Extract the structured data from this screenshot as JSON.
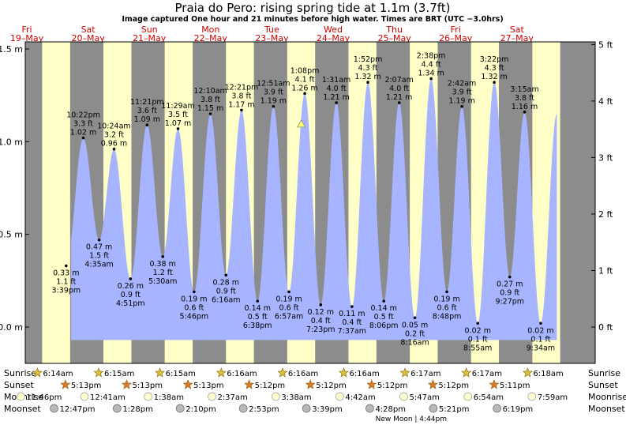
{
  "title": "Praia do Pero: rising  spring tide at 1.1m (3.7ft)",
  "subtitle": "Image captured One hour and 21 minutes before high water. Times are BRT (UTC −3.0hrs)",
  "colors": {
    "night": "#8c8c8c",
    "day": "#ffffc8",
    "tide": "#a7b4ff",
    "day_label": "#cc0000",
    "text": "#000000"
  },
  "days": [
    {
      "dow": "Fri",
      "date": "19–May"
    },
    {
      "dow": "Sat",
      "date": "20–May"
    },
    {
      "dow": "Sun",
      "date": "21–May"
    },
    {
      "dow": "Mon",
      "date": "22–May"
    },
    {
      "dow": "Tue",
      "date": "23–May"
    },
    {
      "dow": "Wed",
      "date": "24–May"
    },
    {
      "dow": "Thu",
      "date": "25–May"
    },
    {
      "dow": "Fri",
      "date": "26–May"
    },
    {
      "dow": "Sat",
      "date": "27–May"
    }
  ],
  "y_ticks_m": [
    "1.5 m",
    "1.0 m",
    "0.5 m",
    "0.0 m"
  ],
  "y_ticks_ft": [
    "5 ft",
    "4 ft",
    "3 ft",
    "2 ft",
    "1 ft",
    "0 ft"
  ],
  "chart_data": {
    "type": "area",
    "title": "Praia do Pero: rising  spring tide at 1.1m (3.7ft)",
    "ylim": [
      -0.08,
      1.52
    ],
    "extremes": [
      {
        "m": 0.33,
        "ft": "1.1 ft",
        "height": "0.33 m",
        "time": "3:39 pm",
        "day": 0,
        "hour": 15.65,
        "type": "low"
      },
      {
        "m": 1.02,
        "ft": "3.3 ft",
        "height": "1.02 m",
        "time": "10:22 pm",
        "day": 0,
        "hour": 22.37,
        "type": "high"
      },
      {
        "m": 0.47,
        "ft": "1.5 ft",
        "height": "0.47 m",
        "time": "4:35 am",
        "day": 1,
        "hour": 4.58,
        "type": "low"
      },
      {
        "m": 0.96,
        "ft": "3.2 ft",
        "height": "0.96 m",
        "time": "10:24 am",
        "day": 1,
        "hour": 10.4,
        "type": "high"
      },
      {
        "m": 0.26,
        "ft": "0.9 ft",
        "height": "0.26 m",
        "time": "4:51 pm",
        "day": 1,
        "hour": 16.85,
        "type": "low"
      },
      {
        "m": 1.09,
        "ft": "3.6 ft",
        "height": "1.09 m",
        "time": "11:21 pm",
        "day": 1,
        "hour": 23.35,
        "type": "high"
      },
      {
        "m": 0.38,
        "ft": "1.2 ft",
        "height": "0.38 m",
        "time": "5:30 am",
        "day": 2,
        "hour": 5.5,
        "type": "low"
      },
      {
        "m": 1.07,
        "ft": "3.5 ft",
        "height": "1.07 m",
        "time": "11:29 am",
        "day": 2,
        "hour": 11.48,
        "type": "high"
      },
      {
        "m": 0.19,
        "ft": "0.6 ft",
        "height": "0.19 m",
        "time": "5:46 pm",
        "day": 2,
        "hour": 17.77,
        "type": "low"
      },
      {
        "m": 1.15,
        "ft": "3.8 ft",
        "height": "1.15 m",
        "time": "12:10 am",
        "day": 3,
        "hour": 0.17,
        "type": "high"
      },
      {
        "m": 0.28,
        "ft": "0.9 ft",
        "height": "0.28 m",
        "time": "6:16 am",
        "day": 3,
        "hour": 6.27,
        "type": "low"
      },
      {
        "m": 1.17,
        "ft": "3.8 ft",
        "height": "1.17 m",
        "time": "12:21 pm",
        "day": 3,
        "hour": 12.35,
        "type": "high"
      },
      {
        "m": 0.14,
        "ft": "0.5 ft",
        "height": "0.14 m",
        "time": "6:38 pm",
        "day": 3,
        "hour": 18.63,
        "type": "low"
      },
      {
        "m": 1.19,
        "ft": "3.9 ft",
        "height": "1.19 m",
        "time": "12:51 am",
        "day": 4,
        "hour": 0.85,
        "type": "high"
      },
      {
        "m": 0.19,
        "ft": "0.6 ft",
        "height": "0.19 m",
        "time": "6:57 am",
        "day": 4,
        "hour": 6.95,
        "type": "low"
      },
      {
        "m": 1.26,
        "ft": "4.1 ft",
        "height": "1.26 m",
        "time": "1:08 pm",
        "day": 4,
        "hour": 13.13,
        "type": "high"
      },
      {
        "m": 0.12,
        "ft": "0.4 ft",
        "height": "0.12 m",
        "time": "7:23 pm",
        "day": 4,
        "hour": 19.38,
        "type": "low"
      },
      {
        "m": 1.21,
        "ft": "4.0 ft",
        "height": "1.21 m",
        "time": "1:31 am",
        "day": 5,
        "hour": 1.52,
        "type": "high"
      },
      {
        "m": 0.11,
        "ft": "0.4 ft",
        "height": "0.11 m",
        "time": "7:37 am",
        "day": 5,
        "hour": 7.62,
        "type": "low"
      },
      {
        "m": 1.32,
        "ft": "4.3 ft",
        "height": "1.32 m",
        "time": "1:52 pm",
        "day": 5,
        "hour": 13.87,
        "type": "high"
      },
      {
        "m": 0.14,
        "ft": "0.5 ft",
        "height": "0.14 m",
        "time": "8:06 pm",
        "day": 5,
        "hour": 20.1,
        "type": "low"
      },
      {
        "m": 1.21,
        "ft": "4.0 ft",
        "height": "1.21 m",
        "time": "2:07 am",
        "day": 6,
        "hour": 2.12,
        "type": "high"
      },
      {
        "m": 0.05,
        "ft": "0.2 ft",
        "height": "0.05 m",
        "time": "8:16 am",
        "day": 6,
        "hour": 8.27,
        "type": "low"
      },
      {
        "m": 1.34,
        "ft": "4.4 ft",
        "height": "1.34 m",
        "time": "2:38 pm",
        "day": 6,
        "hour": 14.63,
        "type": "high"
      },
      {
        "m": 0.19,
        "ft": "0.6 ft",
        "height": "0.19 m",
        "time": "8:48 pm",
        "day": 6,
        "hour": 20.8,
        "type": "low"
      },
      {
        "m": 1.19,
        "ft": "3.9 ft",
        "height": "1.19 m",
        "time": "2:42 am",
        "day": 7,
        "hour": 2.7,
        "type": "high"
      },
      {
        "m": 0.02,
        "ft": "0.1 ft",
        "height": "0.02 m",
        "time": "8:55 am",
        "day": 7,
        "hour": 8.92,
        "type": "low"
      },
      {
        "m": 1.32,
        "ft": "4.3 ft",
        "height": "1.32 m",
        "time": "3:22 pm",
        "day": 7,
        "hour": 15.37,
        "type": "high"
      },
      {
        "m": 0.27,
        "ft": "0.9 ft",
        "height": "0.27 m",
        "time": "9:27 pm",
        "day": 7,
        "hour": 21.45,
        "type": "low"
      },
      {
        "m": 1.16,
        "ft": "3.8 ft",
        "height": "1.16 m",
        "time": "3:15 am",
        "day": 8,
        "hour": 3.25,
        "type": "high"
      },
      {
        "m": 0.02,
        "ft": "0.1 ft",
        "height": "0.02 m",
        "time": "9:34 am",
        "day": 8,
        "hour": 9.57,
        "type": "low"
      }
    ],
    "current": {
      "m": 1.1,
      "ft": 3.7,
      "day": 4,
      "hour": 11.78
    }
  },
  "rows": {
    "sunrise_label": "Sunrise",
    "sunset_label": "Sunset",
    "moonrise_label": "Moonrise",
    "moonset_label": "Moonset",
    "sunrise": [
      "6:14am",
      "6:15am",
      "6:15am",
      "6:16am",
      "6:16am",
      "6:16am",
      "6:17am",
      "6:17am",
      "6:18am"
    ],
    "sunset": [
      "5:13pm",
      "5:13pm",
      "5:13pm",
      "5:12pm",
      "5:12pm",
      "5:12pm",
      "5:12pm",
      "5:11pm"
    ],
    "moonrise": [
      "11:46pm",
      "12:41am",
      "1:38am",
      "2:37am",
      "3:38am",
      "4:42am",
      "5:47am",
      "6:54am",
      "7:59am"
    ],
    "moonset": [
      "12:47pm",
      "1:28pm",
      "2:10pm",
      "2:53pm",
      "3:39pm",
      "4:28pm",
      "5:21pm",
      "6:19pm"
    ],
    "new_moon": "New Moon",
    "new_moon_time": "4:44pm"
  }
}
